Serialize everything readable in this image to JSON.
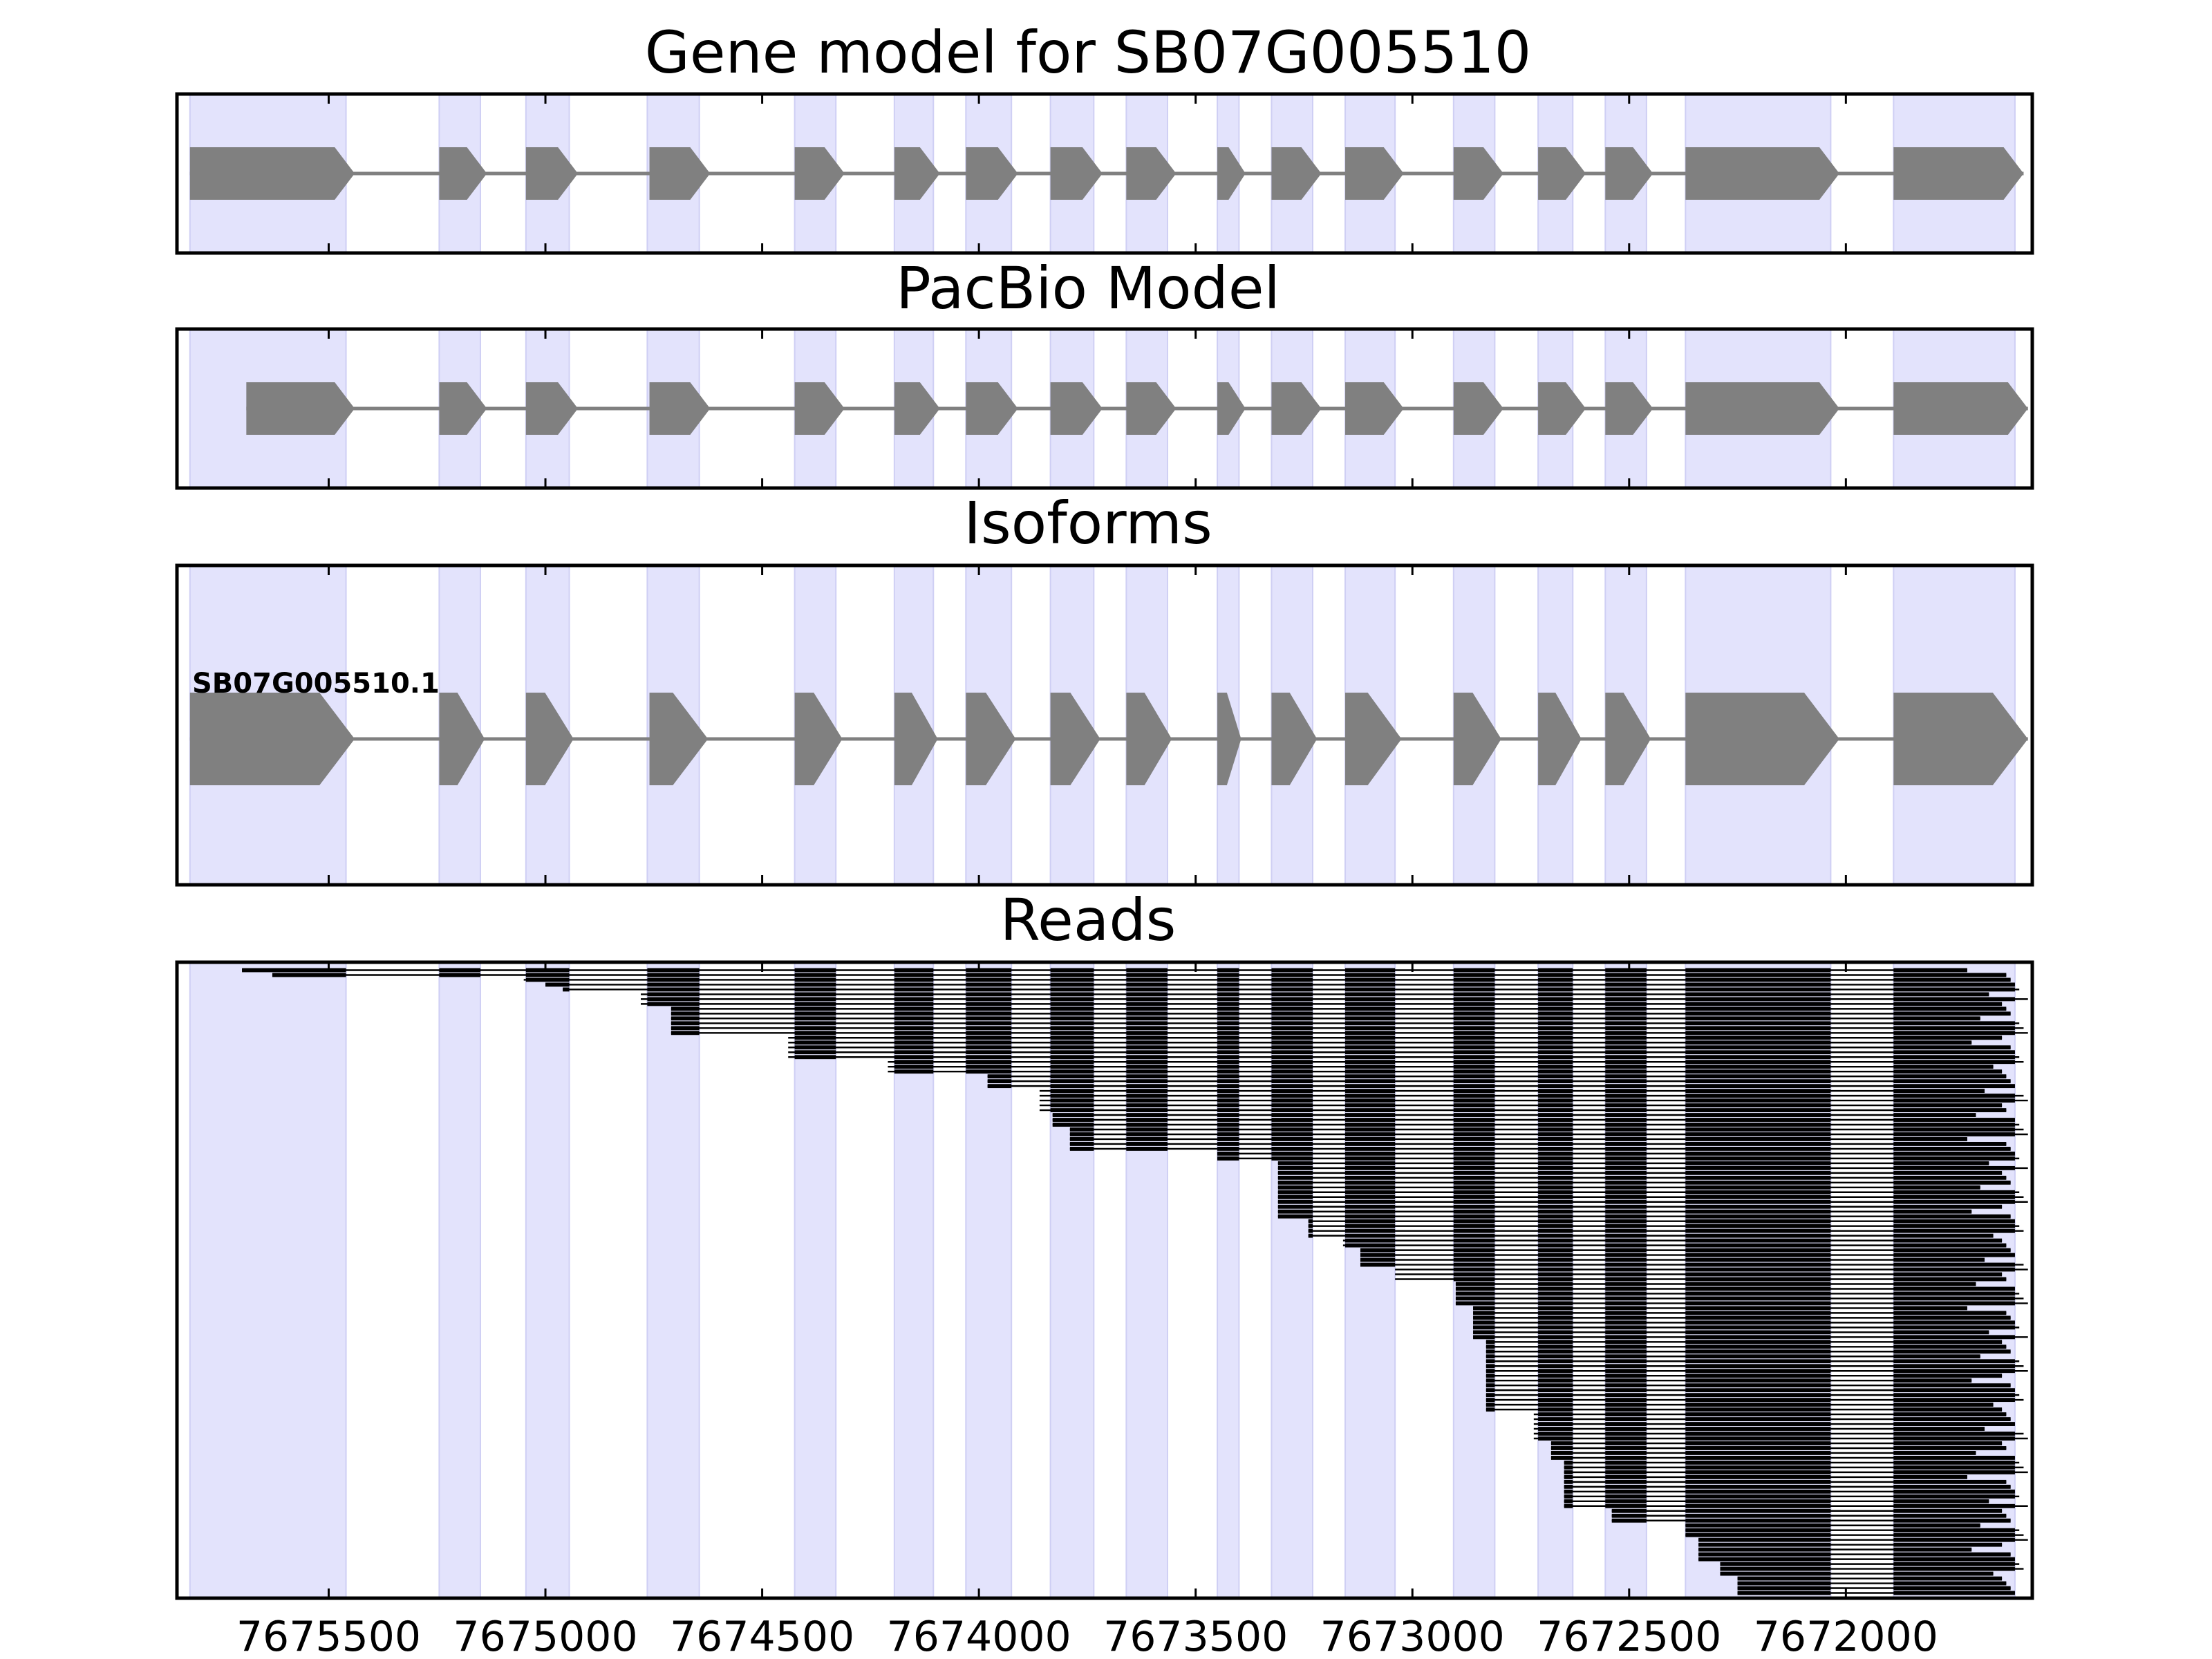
{
  "colors": {
    "exon_band": "#e3e3fc",
    "exon_band_edge": "#cfcff4",
    "gene_feature": "#808080",
    "read": "#000000",
    "frame": "#000000"
  },
  "chart_data": {
    "type": "gene_track",
    "xlim": [
      7675850,
      7671570
    ],
    "x_axis_reversed": true,
    "xticks": [
      7675500,
      7675000,
      7674500,
      7674000,
      7673500,
      7673000,
      7672500,
      7672000
    ],
    "xtick_labels": [
      "7675500",
      "7675000",
      "7674500",
      "7674000",
      "7673500",
      "7673000",
      "7672500",
      "7672000"
    ],
    "exon_bands": [
      [
        7675820,
        7675460
      ],
      [
        7675245,
        7675150
      ],
      [
        7675045,
        7674945
      ],
      [
        7674765,
        7674645
      ],
      [
        7674425,
        7674330
      ],
      [
        7674195,
        7674105
      ],
      [
        7674030,
        7673925
      ],
      [
        7673835,
        7673735
      ],
      [
        7673660,
        7673565
      ],
      [
        7673450,
        7673400
      ],
      [
        7673325,
        7673230
      ],
      [
        7673155,
        7673040
      ],
      [
        7672905,
        7672810
      ],
      [
        7672710,
        7672630
      ],
      [
        7672555,
        7672460
      ],
      [
        7672370,
        7672035
      ],
      [
        7671890,
        7671610
      ]
    ],
    "panels": [
      {
        "title": "Gene model for SB07G005510",
        "tracks": [
          {
            "label": "",
            "start": 7675820,
            "end": 7671590,
            "exons": [
              [
                7675820,
                7675440
              ],
              [
                7675245,
                7675135
              ],
              [
                7675045,
                7674925
              ],
              [
                7674760,
                7674620
              ],
              [
                7674425,
                7674310
              ],
              [
                7674195,
                7674090
              ],
              [
                7674030,
                7673910
              ],
              [
                7673835,
                7673715
              ],
              [
                7673660,
                7673545
              ],
              [
                7673450,
                7673385
              ],
              [
                7673325,
                7673210
              ],
              [
                7673155,
                7673020
              ],
              [
                7672905,
                7672790
              ],
              [
                7672710,
                7672600
              ],
              [
                7672555,
                7672445
              ],
              [
                7672370,
                7672015
              ],
              [
                7671890,
                7671590
              ]
            ]
          }
        ]
      },
      {
        "title": "PacBio Model",
        "tracks": [
          {
            "label": "",
            "start": 7675690,
            "end": 7671580,
            "exons": [
              [
                7675690,
                7675440
              ],
              [
                7675245,
                7675135
              ],
              [
                7675045,
                7674925
              ],
              [
                7674760,
                7674620
              ],
              [
                7674425,
                7674310
              ],
              [
                7674195,
                7674090
              ],
              [
                7674030,
                7673910
              ],
              [
                7673835,
                7673715
              ],
              [
                7673660,
                7673545
              ],
              [
                7673450,
                7673385
              ],
              [
                7673325,
                7673210
              ],
              [
                7673155,
                7673020
              ],
              [
                7672905,
                7672790
              ],
              [
                7672710,
                7672600
              ],
              [
                7672555,
                7672445
              ],
              [
                7672370,
                7672015
              ],
              [
                7671890,
                7671580
              ]
            ]
          }
        ]
      },
      {
        "title": "Isoforms",
        "tracks": [
          {
            "label": "SB07G005510.1",
            "start": 7675820,
            "end": 7671580,
            "exons": [
              [
                7675820,
                7675440
              ],
              [
                7675245,
                7675140
              ],
              [
                7675045,
                7674935
              ],
              [
                7674760,
                7674625
              ],
              [
                7674425,
                7674315
              ],
              [
                7674195,
                7674095
              ],
              [
                7674030,
                7673915
              ],
              [
                7673835,
                7673720
              ],
              [
                7673660,
                7673555
              ],
              [
                7673450,
                7673395
              ],
              [
                7673325,
                7673220
              ],
              [
                7673155,
                7673025
              ],
              [
                7672905,
                7672795
              ],
              [
                7672710,
                7672610
              ],
              [
                7672555,
                7672450
              ],
              [
                7672370,
                7672015
              ],
              [
                7671890,
                7671580
              ]
            ]
          }
        ]
      },
      {
        "title": "Reads",
        "read_count": 130,
        "note": "Each read spans from its start coordinate to 7671610 (ends jitter 7671600-7671690), drawn as thick blocks over exon bands joined by thin intron lines; read starts sorted descending (staircase).",
        "read_start_staircase": [
          [
            0,
            7675700
          ],
          [
            1,
            7675630
          ],
          [
            2,
            7675050
          ],
          [
            3,
            7675000
          ],
          [
            4,
            7674960
          ],
          [
            5,
            7674780
          ],
          [
            8,
            7674710
          ],
          [
            14,
            7674440
          ],
          [
            19,
            7674210
          ],
          [
            22,
            7673980
          ],
          [
            25,
            7673860
          ],
          [
            30,
            7673830
          ],
          [
            33,
            7673790
          ],
          [
            38,
            7673450
          ],
          [
            40,
            7673310
          ],
          [
            52,
            7673240
          ],
          [
            56,
            7673160
          ],
          [
            58,
            7673120
          ],
          [
            62,
            7673040
          ],
          [
            65,
            7672900
          ],
          [
            70,
            7672860
          ],
          [
            77,
            7672830
          ],
          [
            92,
            7672720
          ],
          [
            98,
            7672680
          ],
          [
            102,
            7672650
          ],
          [
            112,
            7672540
          ],
          [
            115,
            7672370
          ],
          [
            118,
            7672340
          ],
          [
            123,
            7672290
          ],
          [
            126,
            7672250
          ]
        ]
      }
    ]
  }
}
